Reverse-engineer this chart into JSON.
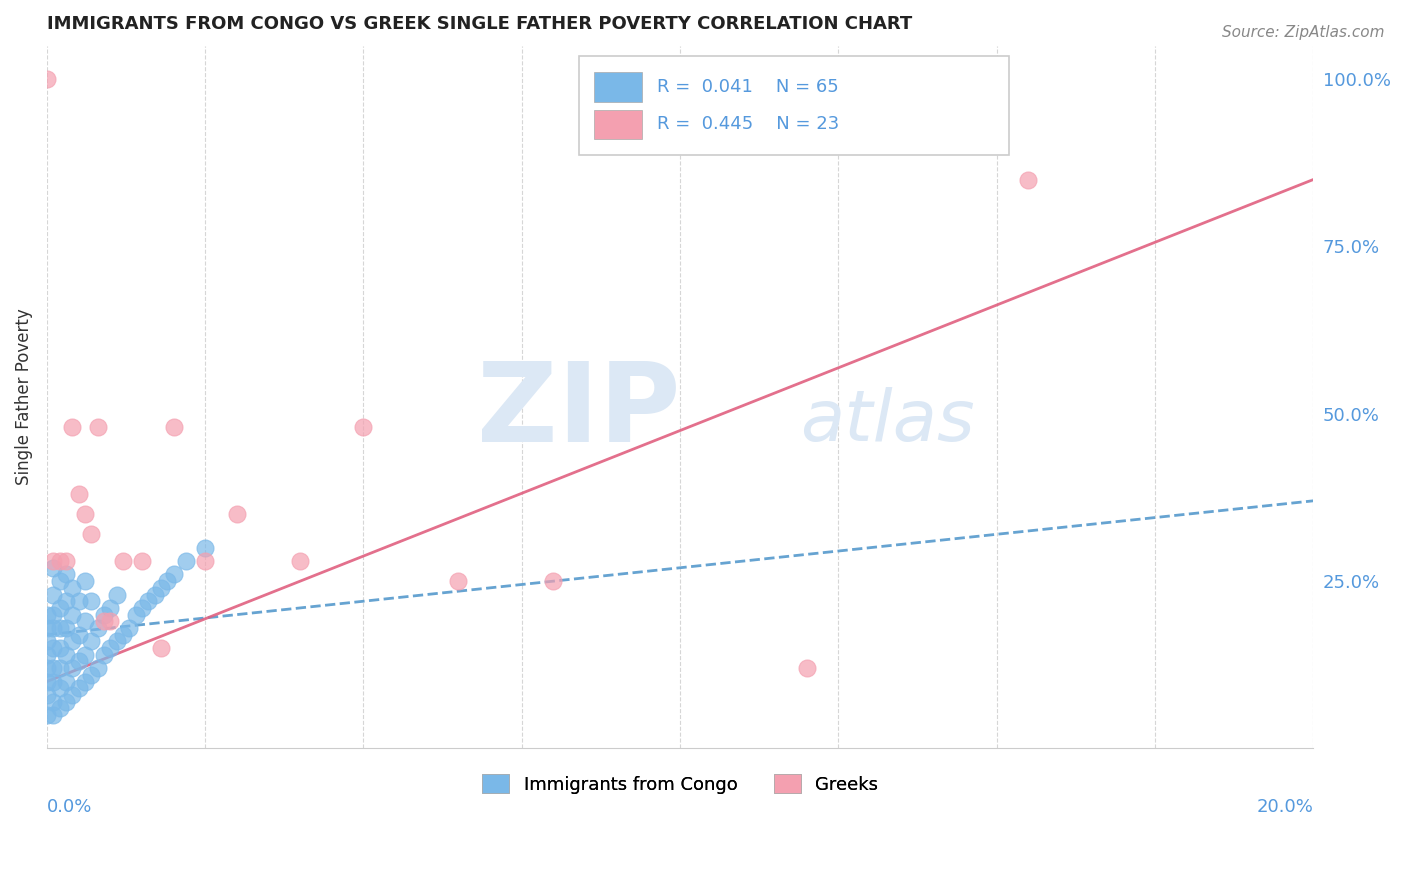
{
  "title": "IMMIGRANTS FROM CONGO VS GREEK SINGLE FATHER POVERTY CORRELATION CHART",
  "source": "Source: ZipAtlas.com",
  "ylabel": "Single Father Poverty",
  "right_yticks": [
    "100.0%",
    "75.0%",
    "50.0%",
    "25.0%"
  ],
  "right_ytick_vals": [
    1.0,
    0.75,
    0.5,
    0.25
  ],
  "blue_color": "#7AB8E8",
  "pink_color": "#F4A0B0",
  "blue_line_color": "#5599CC",
  "pink_line_color": "#E06080",
  "congo_scatter_x": [
    0.0,
    0.0,
    0.0,
    0.0,
    0.0,
    0.0,
    0.0,
    0.0,
    0.001,
    0.001,
    0.001,
    0.001,
    0.001,
    0.001,
    0.001,
    0.001,
    0.001,
    0.002,
    0.002,
    0.002,
    0.002,
    0.002,
    0.002,
    0.002,
    0.003,
    0.003,
    0.003,
    0.003,
    0.003,
    0.003,
    0.004,
    0.004,
    0.004,
    0.004,
    0.004,
    0.005,
    0.005,
    0.005,
    0.005,
    0.006,
    0.006,
    0.006,
    0.006,
    0.007,
    0.007,
    0.007,
    0.008,
    0.008,
    0.009,
    0.009,
    0.01,
    0.01,
    0.011,
    0.011,
    0.012,
    0.013,
    0.014,
    0.015,
    0.016,
    0.017,
    0.018,
    0.019,
    0.02,
    0.022,
    0.025
  ],
  "congo_scatter_y": [
    0.05,
    0.08,
    0.1,
    0.12,
    0.14,
    0.16,
    0.18,
    0.2,
    0.05,
    0.07,
    0.1,
    0.12,
    0.15,
    0.18,
    0.2,
    0.23,
    0.27,
    0.06,
    0.09,
    0.12,
    0.15,
    0.18,
    0.21,
    0.25,
    0.07,
    0.1,
    0.14,
    0.18,
    0.22,
    0.26,
    0.08,
    0.12,
    0.16,
    0.2,
    0.24,
    0.09,
    0.13,
    0.17,
    0.22,
    0.1,
    0.14,
    0.19,
    0.25,
    0.11,
    0.16,
    0.22,
    0.12,
    0.18,
    0.14,
    0.2,
    0.15,
    0.21,
    0.16,
    0.23,
    0.17,
    0.18,
    0.2,
    0.21,
    0.22,
    0.23,
    0.24,
    0.25,
    0.26,
    0.28,
    0.3
  ],
  "greek_scatter_x": [
    0.0,
    0.001,
    0.002,
    0.003,
    0.004,
    0.005,
    0.006,
    0.007,
    0.008,
    0.009,
    0.01,
    0.012,
    0.015,
    0.018,
    0.02,
    0.025,
    0.03,
    0.04,
    0.05,
    0.065,
    0.08,
    0.12,
    0.155
  ],
  "greek_scatter_y": [
    1.0,
    0.28,
    0.28,
    0.28,
    0.48,
    0.38,
    0.35,
    0.32,
    0.48,
    0.19,
    0.19,
    0.28,
    0.28,
    0.15,
    0.48,
    0.28,
    0.35,
    0.28,
    0.48,
    0.25,
    0.25,
    0.12,
    0.85
  ],
  "xmin": 0.0,
  "xmax": 0.2,
  "ymin": 0.0,
  "ymax": 1.05,
  "congo_trend_x": [
    0.0,
    0.2
  ],
  "congo_trend_y": [
    0.17,
    0.37
  ],
  "greek_trend_x": [
    0.0,
    0.2
  ],
  "greek_trend_y": [
    0.1,
    0.85
  ]
}
